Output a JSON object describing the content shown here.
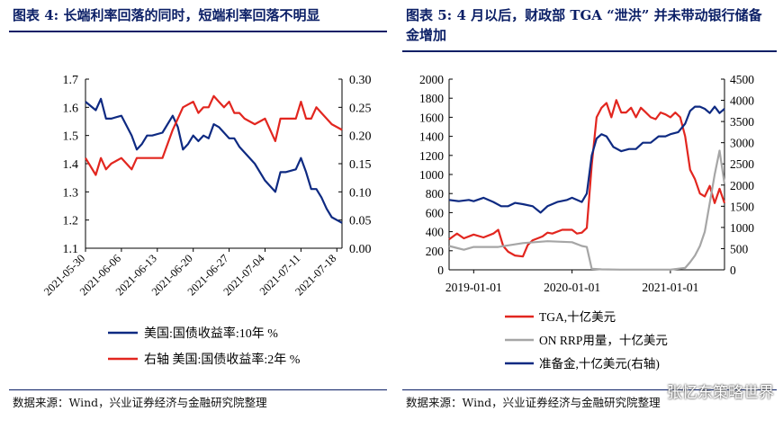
{
  "left": {
    "figure_number": "图表 4:",
    "title": "长端利率回落的同时，短端利率回落不明显",
    "source": "数据来源：Wind，兴业证券经济与金融研究院整理"
  },
  "right": {
    "figure_number": "图表 5:",
    "title": "4 月以后，财政部 TGA “泄洪” 并未带动银行储备金增加",
    "source": "数据来源：Wind，兴业证券经济与金融研究院整理",
    "watermark": "张忆东策略世界"
  },
  "colors": {
    "blue": "#0e2a82",
    "red": "#e2261f",
    "gray": "#a6a6a6",
    "navy_text": "#0b1f66"
  },
  "chart_data": [
    {
      "type": "line",
      "x": [
        "2021-05-30",
        "2021-06-01",
        "2021-06-02",
        "2021-06-03",
        "2021-06-04",
        "2021-06-06",
        "2021-06-08",
        "2021-06-09",
        "2021-06-10",
        "2021-06-11",
        "2021-06-12",
        "2021-06-14",
        "2021-06-16",
        "2021-06-17",
        "2021-06-18",
        "2021-06-19",
        "2021-06-20",
        "2021-06-21",
        "2021-06-22",
        "2021-06-23",
        "2021-06-24",
        "2021-06-25",
        "2021-06-26",
        "2021-06-27",
        "2021-06-28",
        "2021-06-29",
        "2021-06-30",
        "2021-07-02",
        "2021-07-04",
        "2021-07-06",
        "2021-07-07",
        "2021-07-08",
        "2021-07-10",
        "2021-07-11",
        "2021-07-12",
        "2021-07-13",
        "2021-07-14",
        "2021-07-15",
        "2021-07-16",
        "2021-07-17",
        "2021-07-19"
      ],
      "x_ticks": [
        "2021-05-30",
        "2021-06-06",
        "2021-06-13",
        "2021-06-20",
        "2021-06-27",
        "2021-07-04",
        "2021-07-11",
        "2021-07-18"
      ],
      "series": [
        {
          "name": "美国:国债收益率:10年 %",
          "axis": "left",
          "color": "#0e2a82",
          "values": [
            1.62,
            1.59,
            1.63,
            1.56,
            1.56,
            1.57,
            1.5,
            1.45,
            1.47,
            1.5,
            1.5,
            1.51,
            1.57,
            1.53,
            1.45,
            1.47,
            1.5,
            1.48,
            1.5,
            1.49,
            1.54,
            1.53,
            1.51,
            1.49,
            1.49,
            1.46,
            1.44,
            1.4,
            1.34,
            1.3,
            1.37,
            1.37,
            1.38,
            1.42,
            1.37,
            1.31,
            1.31,
            1.28,
            1.24,
            1.21,
            1.19
          ]
        },
        {
          "name": "右轴 美国:国债收益率:2年 %",
          "axis": "right",
          "color": "#e2261f",
          "values": [
            0.16,
            0.13,
            0.16,
            0.14,
            0.15,
            0.16,
            0.14,
            0.16,
            0.16,
            0.16,
            0.16,
            0.16,
            0.21,
            0.23,
            0.25,
            0.255,
            0.26,
            0.24,
            0.25,
            0.25,
            0.27,
            0.26,
            0.25,
            0.26,
            0.24,
            0.24,
            0.23,
            0.22,
            0.23,
            0.19,
            0.23,
            0.23,
            0.23,
            0.26,
            0.23,
            0.23,
            0.25,
            0.24,
            0.23,
            0.22,
            0.21
          ]
        }
      ],
      "y_left": {
        "range": [
          1.1,
          1.7
        ],
        "ticks": [
          "1.1",
          "1.2",
          "1.3",
          "1.4",
          "1.5",
          "1.6",
          "1.7"
        ]
      },
      "y_right": {
        "range": [
          0,
          0.3
        ],
        "ticks": [
          "0.00",
          "0.05",
          "0.10",
          "0.15",
          "0.20",
          "0.25",
          "0.30"
        ]
      },
      "legend": [
        "美国:国债收益率:10年 %",
        "右轴 美国:国债收益率:2年 %"
      ]
    },
    {
      "type": "line",
      "x_range": [
        2018.75,
        2021.55
      ],
      "x_ticks": [
        {
          "label": "2019-01-01",
          "value": 2019.0
        },
        {
          "label": "2020-01-01",
          "value": 2020.0
        },
        {
          "label": "2021-01-01",
          "value": 2021.0
        }
      ],
      "series": [
        {
          "name": "TGA,十亿美元",
          "axis": "left",
          "color": "#e2261f",
          "x": [
            2018.75,
            2018.83,
            2018.9,
            2019.0,
            2019.1,
            2019.2,
            2019.25,
            2019.3,
            2019.35,
            2019.42,
            2019.5,
            2019.55,
            2019.6,
            2019.65,
            2019.7,
            2019.75,
            2019.8,
            2019.9,
            2020.0,
            2020.05,
            2020.1,
            2020.15,
            2020.2,
            2020.25,
            2020.3,
            2020.35,
            2020.4,
            2020.45,
            2020.5,
            2020.55,
            2020.6,
            2020.65,
            2020.7,
            2020.75,
            2020.8,
            2020.85,
            2020.9,
            2020.95,
            2021.0,
            2021.05,
            2021.1,
            2021.15,
            2021.2,
            2021.25,
            2021.3,
            2021.35,
            2021.4,
            2021.45,
            2021.5,
            2021.55
          ],
          "values": [
            320,
            380,
            330,
            370,
            340,
            380,
            420,
            250,
            190,
            150,
            140,
            260,
            310,
            330,
            350,
            390,
            380,
            420,
            420,
            380,
            390,
            440,
            1100,
            1600,
            1700,
            1750,
            1600,
            1780,
            1650,
            1650,
            1700,
            1600,
            1700,
            1650,
            1600,
            1580,
            1650,
            1630,
            1600,
            1650,
            1600,
            1400,
            1050,
            950,
            800,
            770,
            880,
            700,
            850,
            700
          ]
        },
        {
          "name": "ON RRP用量，十亿美元",
          "axis": "left",
          "color": "#a6a6a6",
          "x": [
            2018.75,
            2018.9,
            2019.0,
            2019.25,
            2019.5,
            2019.75,
            2020.0,
            2020.1,
            2020.15,
            2020.2,
            2020.3,
            2020.5,
            2020.75,
            2021.0,
            2021.15,
            2021.2,
            2021.25,
            2021.3,
            2021.35,
            2021.4,
            2021.45,
            2021.5,
            2021.55
          ],
          "values": [
            250,
            210,
            240,
            240,
            280,
            300,
            290,
            250,
            240,
            10,
            5,
            2,
            2,
            2,
            20,
            80,
            150,
            250,
            400,
            700,
            1000,
            1250,
            900
          ]
        },
        {
          "name": "准备金,十亿美元(右轴)",
          "axis": "right",
          "color": "#0e2a82",
          "x": [
            2018.75,
            2018.85,
            2018.95,
            2019.0,
            2019.1,
            2019.2,
            2019.28,
            2019.35,
            2019.42,
            2019.5,
            2019.6,
            2019.68,
            2019.75,
            2019.85,
            2019.95,
            2020.0,
            2020.1,
            2020.15,
            2020.2,
            2020.25,
            2020.3,
            2020.35,
            2020.42,
            2020.5,
            2020.58,
            2020.65,
            2020.72,
            2020.8,
            2020.88,
            2020.95,
            2021.0,
            2021.08,
            2021.15,
            2021.2,
            2021.25,
            2021.3,
            2021.35,
            2021.4,
            2021.45,
            2021.5,
            2021.55
          ],
          "values": [
            1650,
            1620,
            1650,
            1620,
            1700,
            1600,
            1500,
            1500,
            1580,
            1550,
            1500,
            1350,
            1500,
            1600,
            1650,
            1700,
            1600,
            1800,
            2700,
            3100,
            3200,
            3150,
            2900,
            2800,
            2850,
            2850,
            3000,
            3000,
            3150,
            3150,
            3200,
            3250,
            3450,
            3750,
            3850,
            3850,
            3800,
            3700,
            3850,
            3700,
            3800
          ]
        }
      ],
      "y_left": {
        "range": [
          0,
          2000
        ],
        "ticks": [
          "0",
          "200",
          "400",
          "600",
          "800",
          "1000",
          "1200",
          "1400",
          "1600",
          "1800",
          "2000"
        ]
      },
      "y_right": {
        "range": [
          0,
          4500
        ],
        "ticks": [
          "0",
          "500",
          "1000",
          "1500",
          "2000",
          "2500",
          "3000",
          "3500",
          "4000",
          "4500"
        ]
      },
      "legend": [
        "TGA,十亿美元",
        "ON RRP用量，十亿美元",
        "准备金,十亿美元(右轴)"
      ]
    }
  ]
}
